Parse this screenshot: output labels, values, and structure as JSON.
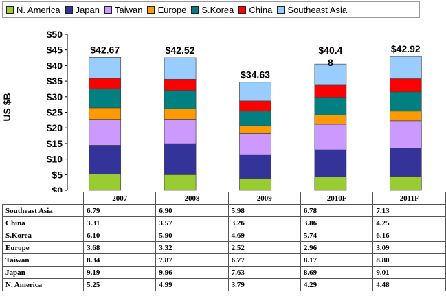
{
  "ylabel": "US $B",
  "legend": [
    {
      "name": "N. America",
      "color": "#99cc33"
    },
    {
      "name": "Japan",
      "color": "#333399"
    },
    {
      "name": "Taiwan",
      "color": "#cc99ff"
    },
    {
      "name": "Europe",
      "color": "#ff9900"
    },
    {
      "name": "S.Korea",
      "color": "#008080"
    },
    {
      "name": "China",
      "color": "#ff0000"
    },
    {
      "name": "Southeast Asia",
      "color": "#99ccff"
    }
  ],
  "chart_data": {
    "type": "bar",
    "stacked": true,
    "title": "",
    "xlabel": "",
    "ylabel": "US $B",
    "ylim": [
      0,
      50
    ],
    "yticks": [
      "$0",
      "$5",
      "$10",
      "$15",
      "$20",
      "$25",
      "$30",
      "$35",
      "$40",
      "$45",
      "$50"
    ],
    "categories": [
      "2007",
      "2008",
      "2009",
      "2010F",
      "2011F"
    ],
    "totals": [
      "$42.67",
      "$42.52",
      "$34.63",
      "$40.48",
      "$42.92"
    ],
    "series": [
      {
        "name": "N. America",
        "values": [
          5.25,
          4.99,
          3.79,
          4.29,
          4.48
        ]
      },
      {
        "name": "Japan",
        "values": [
          9.19,
          9.96,
          7.63,
          8.69,
          9.01
        ]
      },
      {
        "name": "Taiwan",
        "values": [
          8.34,
          7.87,
          6.77,
          8.17,
          8.8
        ]
      },
      {
        "name": "Europe",
        "values": [
          3.68,
          3.32,
          2.52,
          2.96,
          3.09
        ]
      },
      {
        "name": "S.Korea",
        "values": [
          6.1,
          5.9,
          4.69,
          5.74,
          6.16
        ]
      },
      {
        "name": "China",
        "values": [
          3.31,
          3.57,
          3.26,
          3.86,
          4.25
        ]
      },
      {
        "name": "Southeast Asia",
        "values": [
          6.79,
          6.9,
          5.98,
          6.78,
          7.13
        ]
      }
    ]
  },
  "table": {
    "header": [
      "2007",
      "2008",
      "2009",
      "2010F",
      "2011F"
    ],
    "rows": [
      {
        "label": "Southeast Asia",
        "values": [
          "6.79",
          "6.90",
          "5.98",
          "6.78",
          "7.13"
        ]
      },
      {
        "label": "China",
        "values": [
          "3.31",
          "3.57",
          "3.26",
          "3.86",
          "4.25"
        ]
      },
      {
        "label": "S.Korea",
        "values": [
          "6.10",
          "5.90",
          "4.69",
          "5.74",
          "6.16"
        ]
      },
      {
        "label": "Europe",
        "values": [
          "3.68",
          "3.32",
          "2.52",
          "2.96",
          "3.09"
        ]
      },
      {
        "label": "Taiwan",
        "values": [
          "8.34",
          "7.87",
          "6.77",
          "8.17",
          "8.80"
        ]
      },
      {
        "label": "Japan",
        "values": [
          "9.19",
          "9.96",
          "7.63",
          "8.69",
          "9.01"
        ]
      },
      {
        "label": "N. America",
        "values": [
          "5.25",
          "4.99",
          "3.79",
          "4.29",
          "4.48"
        ]
      }
    ]
  }
}
